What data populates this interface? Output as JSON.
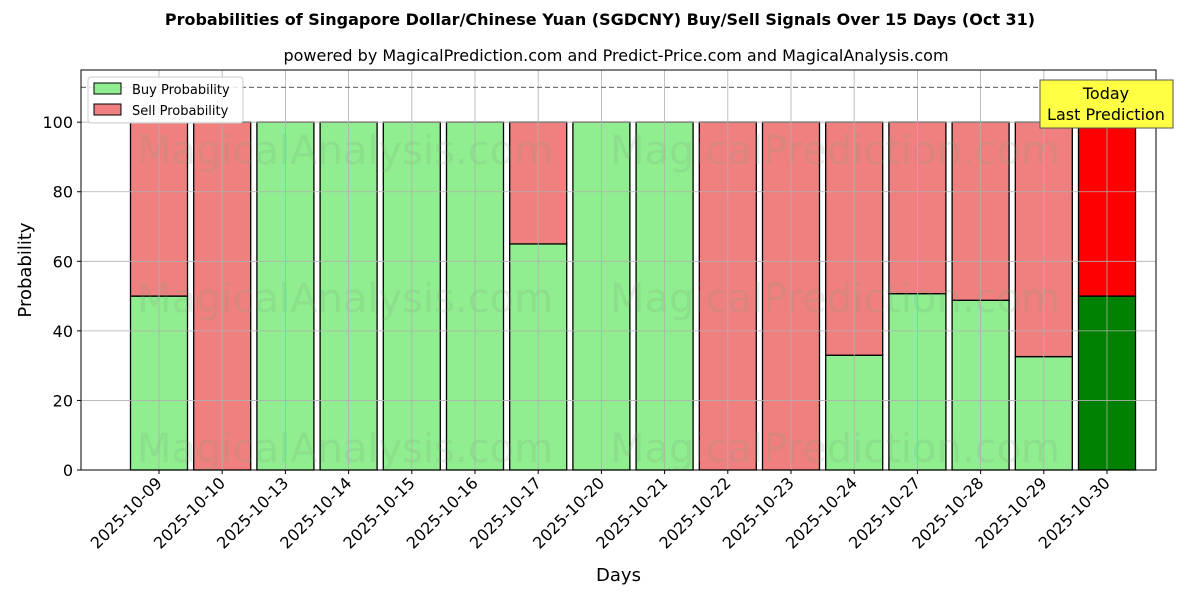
{
  "chart_data": {
    "type": "bar",
    "stacked": true,
    "title": "Probabilities of Singapore Dollar/Chinese Yuan (SGDCNY) Buy/Sell Signals Over 15 Days (Oct 31)",
    "subtitle": "powered by MagicalPrediction.com and Predict-Price.com and MagicalAnalysis.com",
    "xlabel": "Days",
    "ylabel": "Probability",
    "ylim": [
      0,
      115
    ],
    "yticks": [
      0,
      20,
      40,
      60,
      80,
      100
    ],
    "grid": true,
    "legend_position": "upper left",
    "reference_line": 110,
    "categories": [
      "2025-10-09",
      "2025-10-10",
      "2025-10-13",
      "2025-10-14",
      "2025-10-15",
      "2025-10-16",
      "2025-10-17",
      "2025-10-20",
      "2025-10-21",
      "2025-10-22",
      "2025-10-23",
      "2025-10-24",
      "2025-10-27",
      "2025-10-28",
      "2025-10-29",
      "2025-10-30"
    ],
    "series": [
      {
        "name": "Buy Probability",
        "color": "#90ee90",
        "values": [
          50,
          0,
          100,
          100,
          100,
          100,
          65,
          100,
          100,
          0,
          0,
          33,
          50.7,
          48.8,
          32.6,
          50
        ]
      },
      {
        "name": "Sell Probability",
        "color": "#f08080",
        "values": [
          50,
          100,
          0,
          0,
          0,
          0,
          35,
          0,
          0,
          100,
          100,
          67,
          49.3,
          51.2,
          67.4,
          50
        ]
      }
    ],
    "highlight": {
      "index": 15,
      "buy_color": "#008000",
      "sell_color": "#ff0000"
    },
    "annotation": {
      "text_line1": "Today",
      "text_line2": "Last Prediction",
      "bg": "#ffff44"
    },
    "watermarks": [
      "MagicalAnalysis.com",
      "MagicalPrediction.com"
    ]
  }
}
